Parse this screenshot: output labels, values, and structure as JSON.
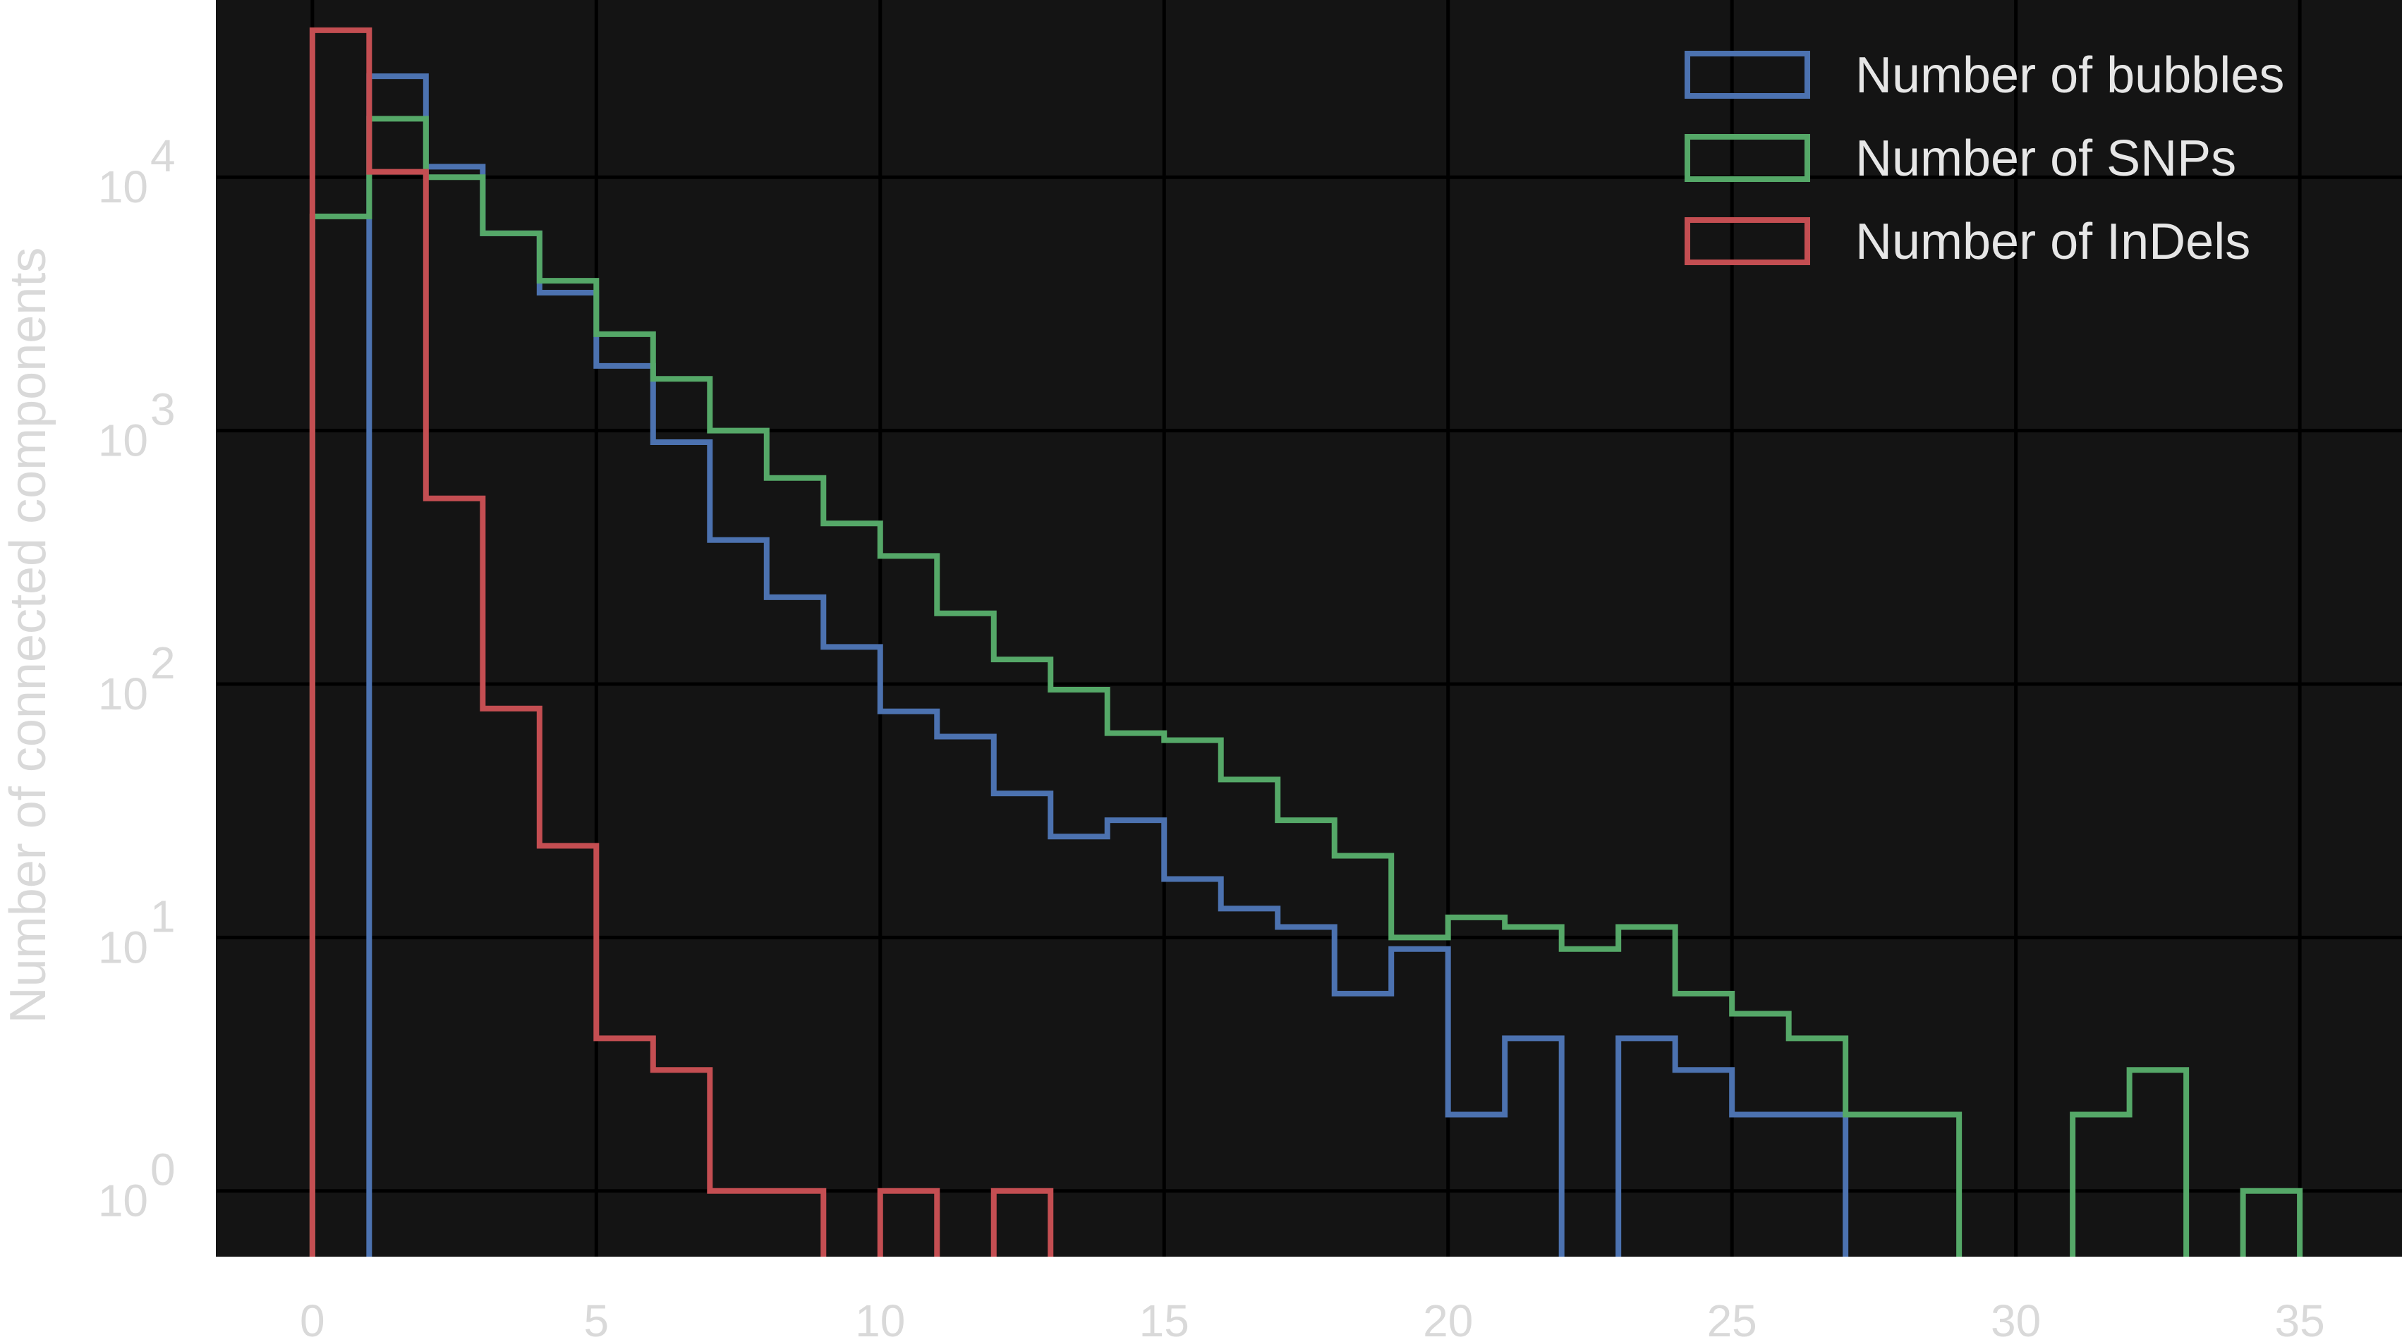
{
  "chart_data": {
    "type": "histogram",
    "title": "",
    "xlabel": "",
    "ylabel": "Number of connected components",
    "yscale": "log",
    "xlim": [
      -1.7,
      36.8
    ],
    "ylim": [
      0.55,
      50000
    ],
    "grid": true,
    "legend_position": "top-right",
    "background": "#141414",
    "x_ticks": [
      0,
      5,
      10,
      15,
      20,
      25,
      30,
      35
    ],
    "x_tick_labels": [
      "0",
      "5",
      "10",
      "15",
      "20",
      "25",
      "30",
      "35"
    ],
    "y_ticks": [
      1,
      10,
      100,
      1000,
      10000
    ],
    "y_tick_labels": [
      {
        "base": "10",
        "exp": "0"
      },
      {
        "base": "10",
        "exp": "1"
      },
      {
        "base": "10",
        "exp": "2"
      },
      {
        "base": "10",
        "exp": "3"
      },
      {
        "base": "10",
        "exp": "4"
      }
    ],
    "series": [
      {
        "name": "Number of bubbles",
        "color": "#4c72b0",
        "bins": [
          [
            1,
            2,
            25000
          ],
          [
            2,
            3,
            11000
          ],
          [
            3,
            4,
            6000
          ],
          [
            4,
            5,
            3500
          ],
          [
            5,
            6,
            1800
          ],
          [
            6,
            7,
            900
          ],
          [
            7,
            8,
            370
          ],
          [
            8,
            9,
            220
          ],
          [
            9,
            10,
            140
          ],
          [
            10,
            11,
            78
          ],
          [
            11,
            12,
            62
          ],
          [
            12,
            13,
            37
          ],
          [
            13,
            14,
            25
          ],
          [
            14,
            15,
            29
          ],
          [
            15,
            16,
            17
          ],
          [
            16,
            17,
            13
          ],
          [
            17,
            18,
            11
          ],
          [
            18,
            19,
            6
          ],
          [
            19,
            20,
            9
          ],
          [
            20,
            21,
            2
          ],
          [
            21,
            22,
            4
          ],
          [
            23,
            24,
            4
          ],
          [
            24,
            25,
            3
          ],
          [
            25,
            26,
            2
          ],
          [
            26,
            27,
            2
          ]
        ]
      },
      {
        "name": "Number of SNPs",
        "color": "#55a868",
        "bins": [
          [
            0,
            1,
            7000
          ],
          [
            1,
            2,
            17000
          ],
          [
            2,
            3,
            10000
          ],
          [
            3,
            4,
            6000
          ],
          [
            4,
            5,
            3900
          ],
          [
            5,
            6,
            2400
          ],
          [
            6,
            7,
            1600
          ],
          [
            7,
            8,
            1000
          ],
          [
            8,
            9,
            650
          ],
          [
            9,
            10,
            430
          ],
          [
            10,
            11,
            320
          ],
          [
            11,
            12,
            190
          ],
          [
            12,
            13,
            125
          ],
          [
            13,
            14,
            95
          ],
          [
            14,
            15,
            64
          ],
          [
            15,
            16,
            60
          ],
          [
            16,
            17,
            42
          ],
          [
            17,
            18,
            29
          ],
          [
            18,
            19,
            21
          ],
          [
            19,
            20,
            10
          ],
          [
            20,
            21,
            12
          ],
          [
            21,
            22,
            11
          ],
          [
            22,
            23,
            9
          ],
          [
            23,
            24,
            11
          ],
          [
            24,
            25,
            6
          ],
          [
            25,
            26,
            5
          ],
          [
            26,
            27,
            4
          ],
          [
            27,
            28,
            2
          ],
          [
            28,
            29,
            2
          ],
          [
            31,
            32,
            2
          ],
          [
            32,
            33,
            3
          ],
          [
            34,
            35,
            1
          ]
        ]
      },
      {
        "name": "Number of InDels",
        "color": "#c44e52",
        "bins": [
          [
            0,
            1,
            38000
          ],
          [
            1,
            2,
            10500
          ],
          [
            2,
            3,
            540
          ],
          [
            3,
            4,
            80
          ],
          [
            4,
            5,
            23
          ],
          [
            5,
            6,
            4
          ],
          [
            6,
            7,
            3
          ],
          [
            7,
            8,
            1
          ],
          [
            8,
            9,
            1
          ],
          [
            10,
            11,
            1
          ],
          [
            12,
            13,
            1
          ]
        ]
      }
    ]
  }
}
